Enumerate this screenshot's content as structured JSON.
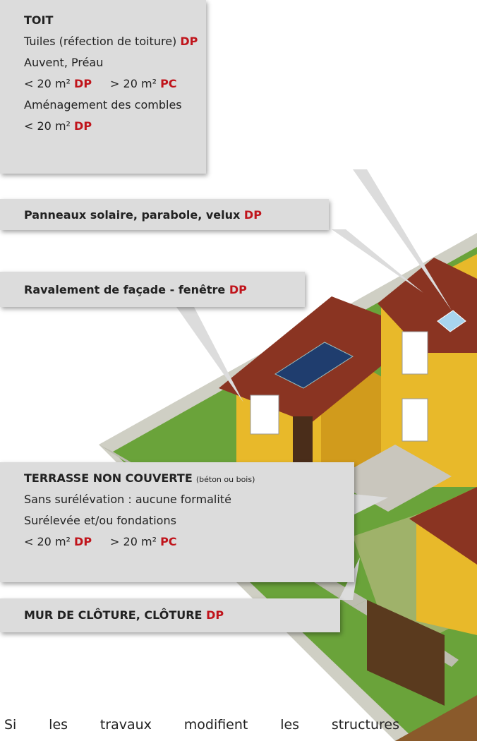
{
  "toit": {
    "title": "TOIT",
    "line1": {
      "text": "Tuiles (réfection de toiture)",
      "code": "DP"
    },
    "line2": "Auvent, Préau",
    "line3": {
      "small": "< 20 m²",
      "small_code": "DP",
      "large": "> 20 m²",
      "large_code": "PC"
    },
    "line4": "Aménagement des combles",
    "line5": {
      "small": "< 20 m²",
      "small_code": "DP"
    }
  },
  "panneaux": {
    "text": "Panneaux solaire, parabole, velux",
    "code": "DP"
  },
  "ravalement": {
    "text": "Ravalement de façade - fenêtre",
    "code": "DP"
  },
  "terrasse": {
    "title": "TERRASSE NON COUVERTE",
    "note": "(béton ou bois)",
    "line1": "Sans surélévation : aucune formalité",
    "line2": "Surélevée et/ou fondations",
    "line3": {
      "small": "< 20 m²",
      "small_code": "DP",
      "large": "> 20 m²",
      "large_code": "PC"
    }
  },
  "mur": {
    "text": "MUR DE CLÔTURE, CLÔTURE",
    "code": "DP"
  },
  "footer": "Si les travaux modifient les structures"
}
